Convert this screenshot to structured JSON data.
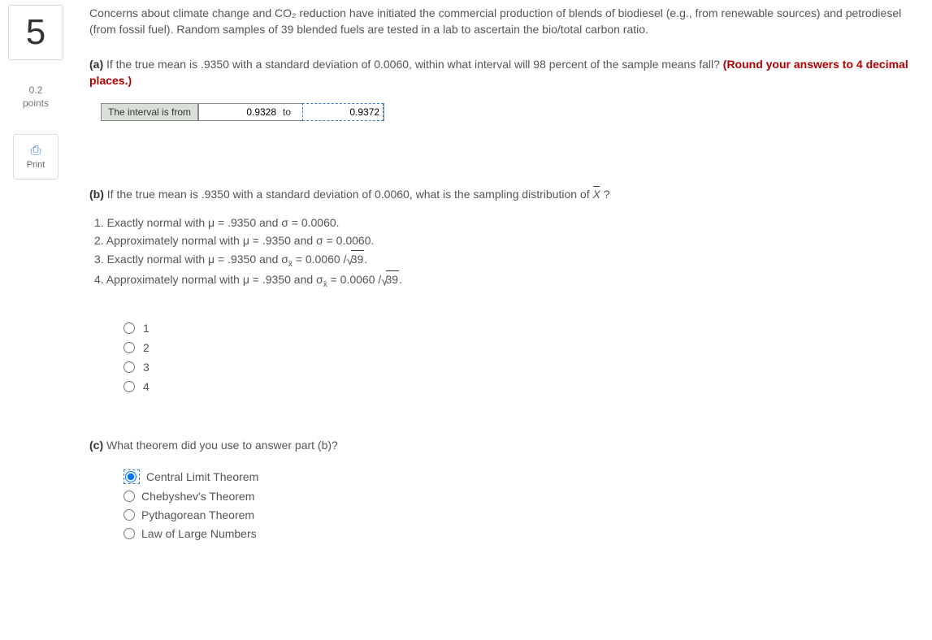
{
  "sidebar": {
    "question_number": "5",
    "points_value": "0.2",
    "points_label": "points",
    "print_label": "Print"
  },
  "intro": "Concerns about climate change and CO₂ reduction have initiated the commercial production of blends of biodiesel (e.g., from renewable sources) and petrodiesel (from fossil fuel). Random samples of 39 blended fuels are tested in a lab to ascertain the bio/total carbon ratio.",
  "part_a": {
    "label": "(a)",
    "text_before": " If the true mean is .9350 with a standard deviation of 0.0060, within what interval will 98 percent of the sample means fall? ",
    "hint": "(Round your answers to 4 decimal places.)",
    "interval_label": "The interval is from",
    "from_value": "0.9328",
    "to_label": "to",
    "to_value": "0.9372"
  },
  "part_b": {
    "label": "(b)",
    "text": " If the true mean is .9350 with a standard deviation of 0.0060, what is the sampling distribution of ",
    "xbar": "X",
    "q": " ?",
    "options": {
      "o1": "1. Exactly normal with μ = .9350 and σ = 0.0060.",
      "o2": "2. Approximately normal with μ = .9350 and σ = 0.0060.",
      "o3_pre": "3. Exactly normal with μ = .9350 and  σ",
      "o3_sub": "x̄",
      "o3_mid": "  =   0.0060 /",
      "o3_sqrt": "39",
      "o3_dot": ".",
      "o4_pre": "4. Approximately normal with μ = .9350 and  σ",
      "o4_sub": "x̄",
      "o4_mid": "  =   0.0060 /",
      "o4_sqrt": "39",
      "o4_dot": "."
    },
    "radios": {
      "r1": "1",
      "r2": "2",
      "r3": "3",
      "r4": "4"
    }
  },
  "part_c": {
    "label": "(c)",
    "text": " What theorem did you use to answer part (b)?",
    "theorems": {
      "t1": "Central Limit Theorem",
      "t2": "Chebyshev's Theorem",
      "t3": "Pythagorean Theorem",
      "t4": "Law of Large Numbers"
    },
    "selected": "t1"
  }
}
